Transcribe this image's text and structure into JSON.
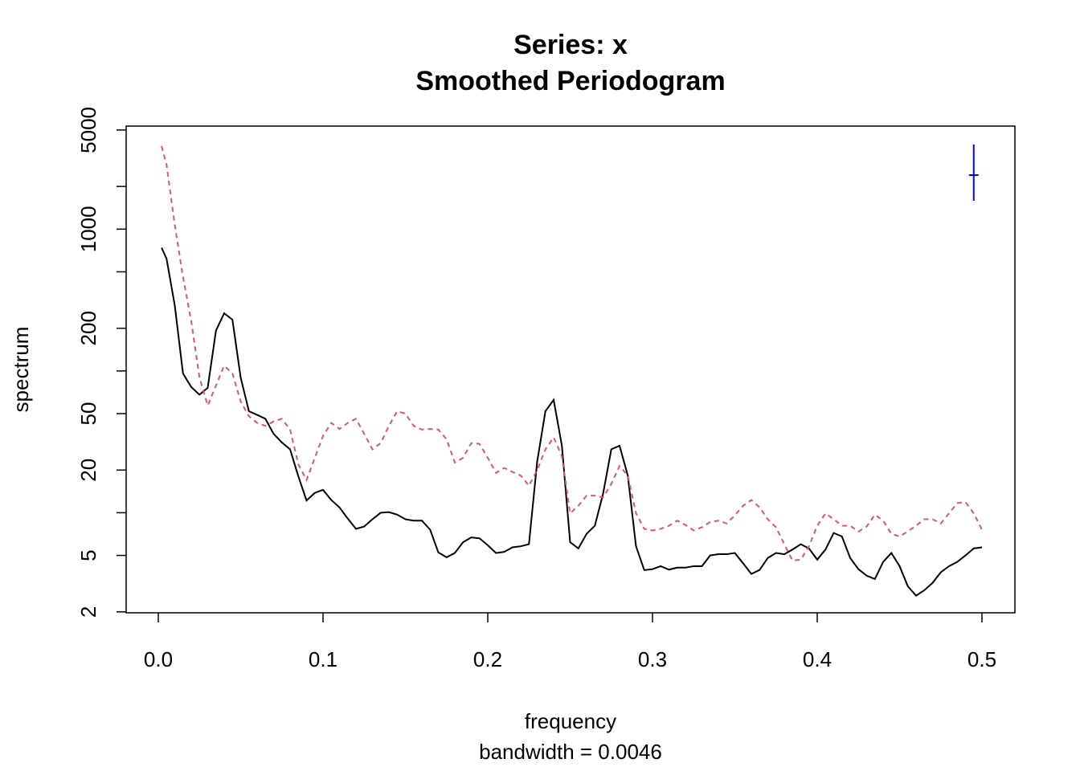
{
  "chart_data": {
    "type": "line",
    "title": "Series: x",
    "subtitle": "Smoothed Periodogram",
    "xlabel": "frequency",
    "sub": "bandwidth = 0.0046",
    "ylabel": "spectrum",
    "ylog": true,
    "xlim": [
      -0.0195,
      0.52
    ],
    "ylim": [
      1.97,
      5330
    ],
    "xticks": [
      {
        "value": 0,
        "label": "0.0"
      },
      0.1,
      0.2,
      0.3,
      0.4,
      0.5
    ],
    "yticks": [
      2,
      5,
      20,
      50,
      200,
      1000,
      5000
    ],
    "yticks_minor": [
      10,
      100,
      500,
      2000
    ],
    "x": [
      0.002,
      0.005,
      0.01,
      0.015,
      0.02,
      0.025,
      0.03,
      0.035,
      0.04,
      0.045,
      0.05,
      0.055,
      0.06,
      0.065,
      0.07,
      0.075,
      0.08,
      0.085,
      0.09,
      0.095,
      0.1,
      0.105,
      0.11,
      0.115,
      0.12,
      0.125,
      0.13,
      0.135,
      0.14,
      0.145,
      0.15,
      0.155,
      0.16,
      0.165,
      0.17,
      0.175,
      0.18,
      0.185,
      0.19,
      0.195,
      0.2,
      0.205,
      0.21,
      0.215,
      0.22,
      0.225,
      0.23,
      0.235,
      0.24,
      0.245,
      0.25,
      0.255,
      0.26,
      0.265,
      0.27,
      0.275,
      0.28,
      0.285,
      0.29,
      0.295,
      0.3,
      0.305,
      0.31,
      0.315,
      0.32,
      0.325,
      0.33,
      0.335,
      0.34,
      0.345,
      0.35,
      0.355,
      0.36,
      0.365,
      0.37,
      0.375,
      0.38,
      0.385,
      0.39,
      0.395,
      0.4,
      0.405,
      0.41,
      0.415,
      0.42,
      0.425,
      0.43,
      0.435,
      0.44,
      0.445,
      0.45,
      0.455,
      0.46,
      0.465,
      0.47,
      0.475,
      0.48,
      0.485,
      0.49,
      0.495,
      0.5
    ],
    "series": [
      {
        "color": "#000000",
        "dash": "solid",
        "values": [
          740,
          620,
          290,
          96,
          77,
          68,
          76,
          192,
          255,
          230,
          90,
          52,
          49,
          46,
          36,
          31.3,
          28,
          18.1,
          12.2,
          13.8,
          14.5,
          12.3,
          10.9,
          9.1,
          7.7,
          8.0,
          9.0,
          10,
          10.1,
          9.7,
          9.0,
          8.8,
          8.8,
          7.6,
          5.25,
          4.85,
          5.2,
          6.2,
          6.7,
          6.6,
          5.9,
          5.2,
          5.3,
          5.7,
          5.8,
          6.0,
          22.9,
          52,
          62.5,
          29.7,
          6.2,
          5.6,
          7.1,
          8.1,
          13.6,
          28,
          29.7,
          18.3,
          5.8,
          3.94,
          4.0,
          4.2,
          3.97,
          4.1,
          4.1,
          4.2,
          4.2,
          5.0,
          5.1,
          5.1,
          5.2,
          4.4,
          3.7,
          3.95,
          4.8,
          5.2,
          5.1,
          5.5,
          6.0,
          5.6,
          4.67,
          5.5,
          7.2,
          6.8,
          4.8,
          4.0,
          3.6,
          3.41,
          4.5,
          5.2,
          4.2,
          3.03,
          2.6,
          2.84,
          3.2,
          3.8,
          4.2,
          4.5,
          5.0,
          5.6,
          5.7
        ]
      },
      {
        "color": "#DF536B",
        "dash": "dashed",
        "values": [
          3850,
          2850,
          1070,
          460,
          224,
          90,
          57,
          79,
          109,
          96,
          61,
          48,
          43,
          41,
          44,
          46,
          38.6,
          22,
          17,
          24.4,
          34.8,
          43,
          39,
          43,
          46,
          36,
          28,
          31,
          41,
          52,
          50,
          41,
          38.6,
          39,
          38.6,
          33,
          22.6,
          24.4,
          31,
          30.6,
          24.4,
          19.1,
          20.7,
          19.4,
          18.3,
          15.5,
          20,
          28,
          34,
          25,
          9.9,
          11.2,
          13.2,
          13.2,
          12.8,
          16,
          21.4,
          18.3,
          9.9,
          7.7,
          7.5,
          7.7,
          8.1,
          8.8,
          8.2,
          7.5,
          7.9,
          8.6,
          8.8,
          8.4,
          9.6,
          11.2,
          12.3,
          10.9,
          9.0,
          7.9,
          6.0,
          4.6,
          4.67,
          5.8,
          8.1,
          9.9,
          9.0,
          8.1,
          8.1,
          7.37,
          8.0,
          9.7,
          8.8,
          7.1,
          6.8,
          7.4,
          8.1,
          9.0,
          9.0,
          8.4,
          9.9,
          11.7,
          11.9,
          9.9,
          7.6
        ]
      }
    ],
    "ci_bar": {
      "x": 0.495,
      "center": 2405,
      "lower": 1585,
      "upper": 3954,
      "color": "#0000FF"
    }
  }
}
